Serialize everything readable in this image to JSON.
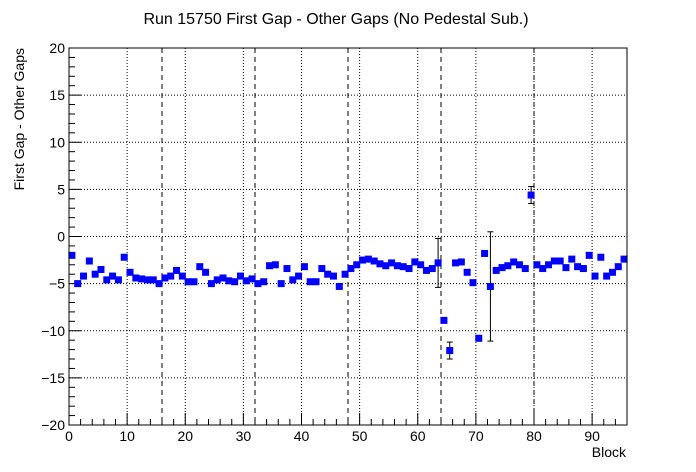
{
  "chart_data": {
    "type": "scatter",
    "title": "Run 15750 First Gap - Other Gaps (No Pedestal Sub.)",
    "xlabel": "Block",
    "ylabel": "First Gap - Other Gaps",
    "xlim": [
      0,
      96
    ],
    "ylim": [
      -20,
      20
    ],
    "x_ticks": [
      0,
      10,
      20,
      30,
      40,
      50,
      60,
      70,
      80,
      90
    ],
    "y_ticks": [
      -20,
      -15,
      -10,
      -5,
      0,
      5,
      10,
      15,
      20
    ],
    "x_tick_labels": [
      "0",
      "10",
      "20",
      "30",
      "40",
      "50",
      "60",
      "70",
      "80",
      "90"
    ],
    "y_tick_labels": [
      "−20",
      "−15",
      "−10",
      "−5",
      "0",
      "5",
      "10",
      "15",
      "20"
    ],
    "grid": "dotted",
    "vertical_dashed_lines_at": [
      16,
      32,
      48,
      64,
      80
    ],
    "marker": "square",
    "marker_color": "#0000ff",
    "points": [
      {
        "x": 0.5,
        "y": -2.0
      },
      {
        "x": 1.5,
        "y": -5.0
      },
      {
        "x": 2.5,
        "y": -4.2
      },
      {
        "x": 3.5,
        "y": -2.6
      },
      {
        "x": 4.5,
        "y": -4.0
      },
      {
        "x": 5.5,
        "y": -3.5
      },
      {
        "x": 6.5,
        "y": -4.6
      },
      {
        "x": 7.5,
        "y": -4.2
      },
      {
        "x": 8.5,
        "y": -4.6
      },
      {
        "x": 9.5,
        "y": -2.2
      },
      {
        "x": 10.5,
        "y": -3.8
      },
      {
        "x": 11.5,
        "y": -4.4
      },
      {
        "x": 12.5,
        "y": -4.5
      },
      {
        "x": 13.5,
        "y": -4.6
      },
      {
        "x": 14.5,
        "y": -4.6
      },
      {
        "x": 15.5,
        "y": -5.0
      },
      {
        "x": 16.5,
        "y": -4.4
      },
      {
        "x": 17.5,
        "y": -4.2
      },
      {
        "x": 18.5,
        "y": -3.6
      },
      {
        "x": 19.5,
        "y": -4.2
      },
      {
        "x": 20.5,
        "y": -4.8
      },
      {
        "x": 21.5,
        "y": -4.8
      },
      {
        "x": 22.5,
        "y": -3.2
      },
      {
        "x": 23.5,
        "y": -3.8
      },
      {
        "x": 24.5,
        "y": -5.0
      },
      {
        "x": 25.5,
        "y": -4.6
      },
      {
        "x": 26.5,
        "y": -4.4
      },
      {
        "x": 27.5,
        "y": -4.7
      },
      {
        "x": 28.5,
        "y": -4.8
      },
      {
        "x": 29.5,
        "y": -4.2
      },
      {
        "x": 30.5,
        "y": -4.7
      },
      {
        "x": 31.5,
        "y": -4.5
      },
      {
        "x": 32.5,
        "y": -5.0
      },
      {
        "x": 33.5,
        "y": -4.8
      },
      {
        "x": 34.5,
        "y": -3.1
      },
      {
        "x": 35.5,
        "y": -3.0
      },
      {
        "x": 36.5,
        "y": -5.0
      },
      {
        "x": 37.5,
        "y": -3.4
      },
      {
        "x": 38.5,
        "y": -4.6
      },
      {
        "x": 39.5,
        "y": -4.2
      },
      {
        "x": 40.5,
        "y": -3.2
      },
      {
        "x": 41.5,
        "y": -4.8
      },
      {
        "x": 42.5,
        "y": -4.8
      },
      {
        "x": 43.5,
        "y": -3.4
      },
      {
        "x": 44.5,
        "y": -4.0
      },
      {
        "x": 45.5,
        "y": -4.2
      },
      {
        "x": 46.5,
        "y": -5.3
      },
      {
        "x": 47.5,
        "y": -4.0
      },
      {
        "x": 48.5,
        "y": -3.4
      },
      {
        "x": 49.5,
        "y": -3.0
      },
      {
        "x": 50.5,
        "y": -2.5
      },
      {
        "x": 51.5,
        "y": -2.4
      },
      {
        "x": 52.5,
        "y": -2.6
      },
      {
        "x": 53.5,
        "y": -2.9
      },
      {
        "x": 54.5,
        "y": -3.1
      },
      {
        "x": 55.5,
        "y": -2.8
      },
      {
        "x": 56.5,
        "y": -3.1
      },
      {
        "x": 57.5,
        "y": -3.2
      },
      {
        "x": 58.5,
        "y": -3.4
      },
      {
        "x": 59.5,
        "y": -2.7
      },
      {
        "x": 60.5,
        "y": -3.0
      },
      {
        "x": 61.5,
        "y": -3.6
      },
      {
        "x": 62.5,
        "y": -3.4
      },
      {
        "x": 63.5,
        "y": -2.8,
        "err": 2.6
      },
      {
        "x": 64.5,
        "y": -8.9
      },
      {
        "x": 65.5,
        "y": -12.1,
        "err": 0.9
      },
      {
        "x": 66.5,
        "y": -2.8
      },
      {
        "x": 67.5,
        "y": -2.7
      },
      {
        "x": 68.5,
        "y": -3.8
      },
      {
        "x": 69.5,
        "y": -4.9
      },
      {
        "x": 70.5,
        "y": -10.8
      },
      {
        "x": 71.5,
        "y": -1.8
      },
      {
        "x": 72.5,
        "y": -5.3,
        "err": 5.8
      },
      {
        "x": 73.5,
        "y": -3.6
      },
      {
        "x": 74.5,
        "y": -3.3
      },
      {
        "x": 75.5,
        "y": -3.1
      },
      {
        "x": 76.5,
        "y": -2.7
      },
      {
        "x": 77.5,
        "y": -3.0
      },
      {
        "x": 78.5,
        "y": -3.4
      },
      {
        "x": 79.5,
        "y": 4.4,
        "err": 0.9
      },
      {
        "x": 80.5,
        "y": -3.0
      },
      {
        "x": 81.5,
        "y": -3.4
      },
      {
        "x": 82.5,
        "y": -3.0
      },
      {
        "x": 83.5,
        "y": -2.6
      },
      {
        "x": 84.5,
        "y": -2.6
      },
      {
        "x": 85.5,
        "y": -3.3
      },
      {
        "x": 86.5,
        "y": -2.4
      },
      {
        "x": 87.5,
        "y": -3.2
      },
      {
        "x": 88.5,
        "y": -3.4
      },
      {
        "x": 89.5,
        "y": -2.0
      },
      {
        "x": 90.5,
        "y": -4.2
      },
      {
        "x": 91.5,
        "y": -2.2
      },
      {
        "x": 92.5,
        "y": -4.2
      },
      {
        "x": 93.5,
        "y": -3.8
      },
      {
        "x": 94.5,
        "y": -3.2
      },
      {
        "x": 95.5,
        "y": -2.4
      }
    ]
  }
}
